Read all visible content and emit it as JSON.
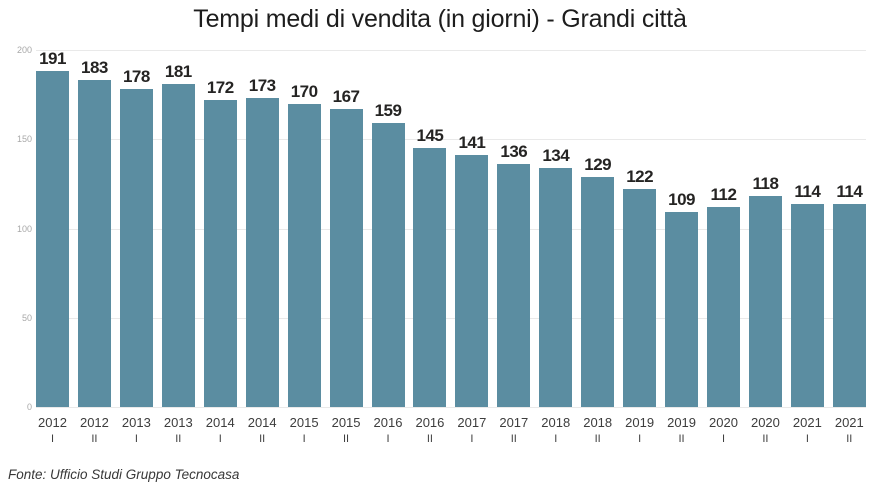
{
  "source_note": "Fonte: Ufficio Studi Gruppo Tecnocasa",
  "colors": {
    "bar": "#5b8da1",
    "grid": "#e9e9e9",
    "title": "#1d1d1d",
    "value_label": "#252423",
    "x_label": "#3d3d3d",
    "y_label": "#a8a8a8",
    "source": "#383838",
    "background": "#ffffff"
  },
  "chart_data": {
    "type": "bar",
    "title": "Tempi medi di vendita (in giorni) - Grandi città",
    "xlabel": "",
    "ylabel": "",
    "ylim": [
      0,
      200
    ],
    "yticks": [
      0,
      50,
      100,
      150,
      200
    ],
    "grid": true,
    "legend": false,
    "categories": [
      {
        "year": "2012",
        "period": "I"
      },
      {
        "year": "2012",
        "period": "II"
      },
      {
        "year": "2013",
        "period": "I"
      },
      {
        "year": "2013",
        "period": "II"
      },
      {
        "year": "2014",
        "period": "I"
      },
      {
        "year": "2014",
        "period": "II"
      },
      {
        "year": "2015",
        "period": "I"
      },
      {
        "year": "2015",
        "period": "II"
      },
      {
        "year": "2016",
        "period": "I"
      },
      {
        "year": "2016",
        "period": "II"
      },
      {
        "year": "2017",
        "period": "I"
      },
      {
        "year": "2017",
        "period": "II"
      },
      {
        "year": "2018",
        "period": "I"
      },
      {
        "year": "2018",
        "period": "II"
      },
      {
        "year": "2019",
        "period": "I"
      },
      {
        "year": "2019",
        "period": "II"
      },
      {
        "year": "2020",
        "period": "I"
      },
      {
        "year": "2020",
        "period": "II"
      },
      {
        "year": "2021",
        "period": "I"
      },
      {
        "year": "2021",
        "period": "II"
      }
    ],
    "values": [
      191,
      183,
      178,
      181,
      172,
      173,
      170,
      167,
      159,
      145,
      141,
      136,
      134,
      129,
      122,
      109,
      112,
      118,
      114,
      114
    ],
    "source": "Fonte: Ufficio Studi Gruppo Tecnocasa"
  }
}
